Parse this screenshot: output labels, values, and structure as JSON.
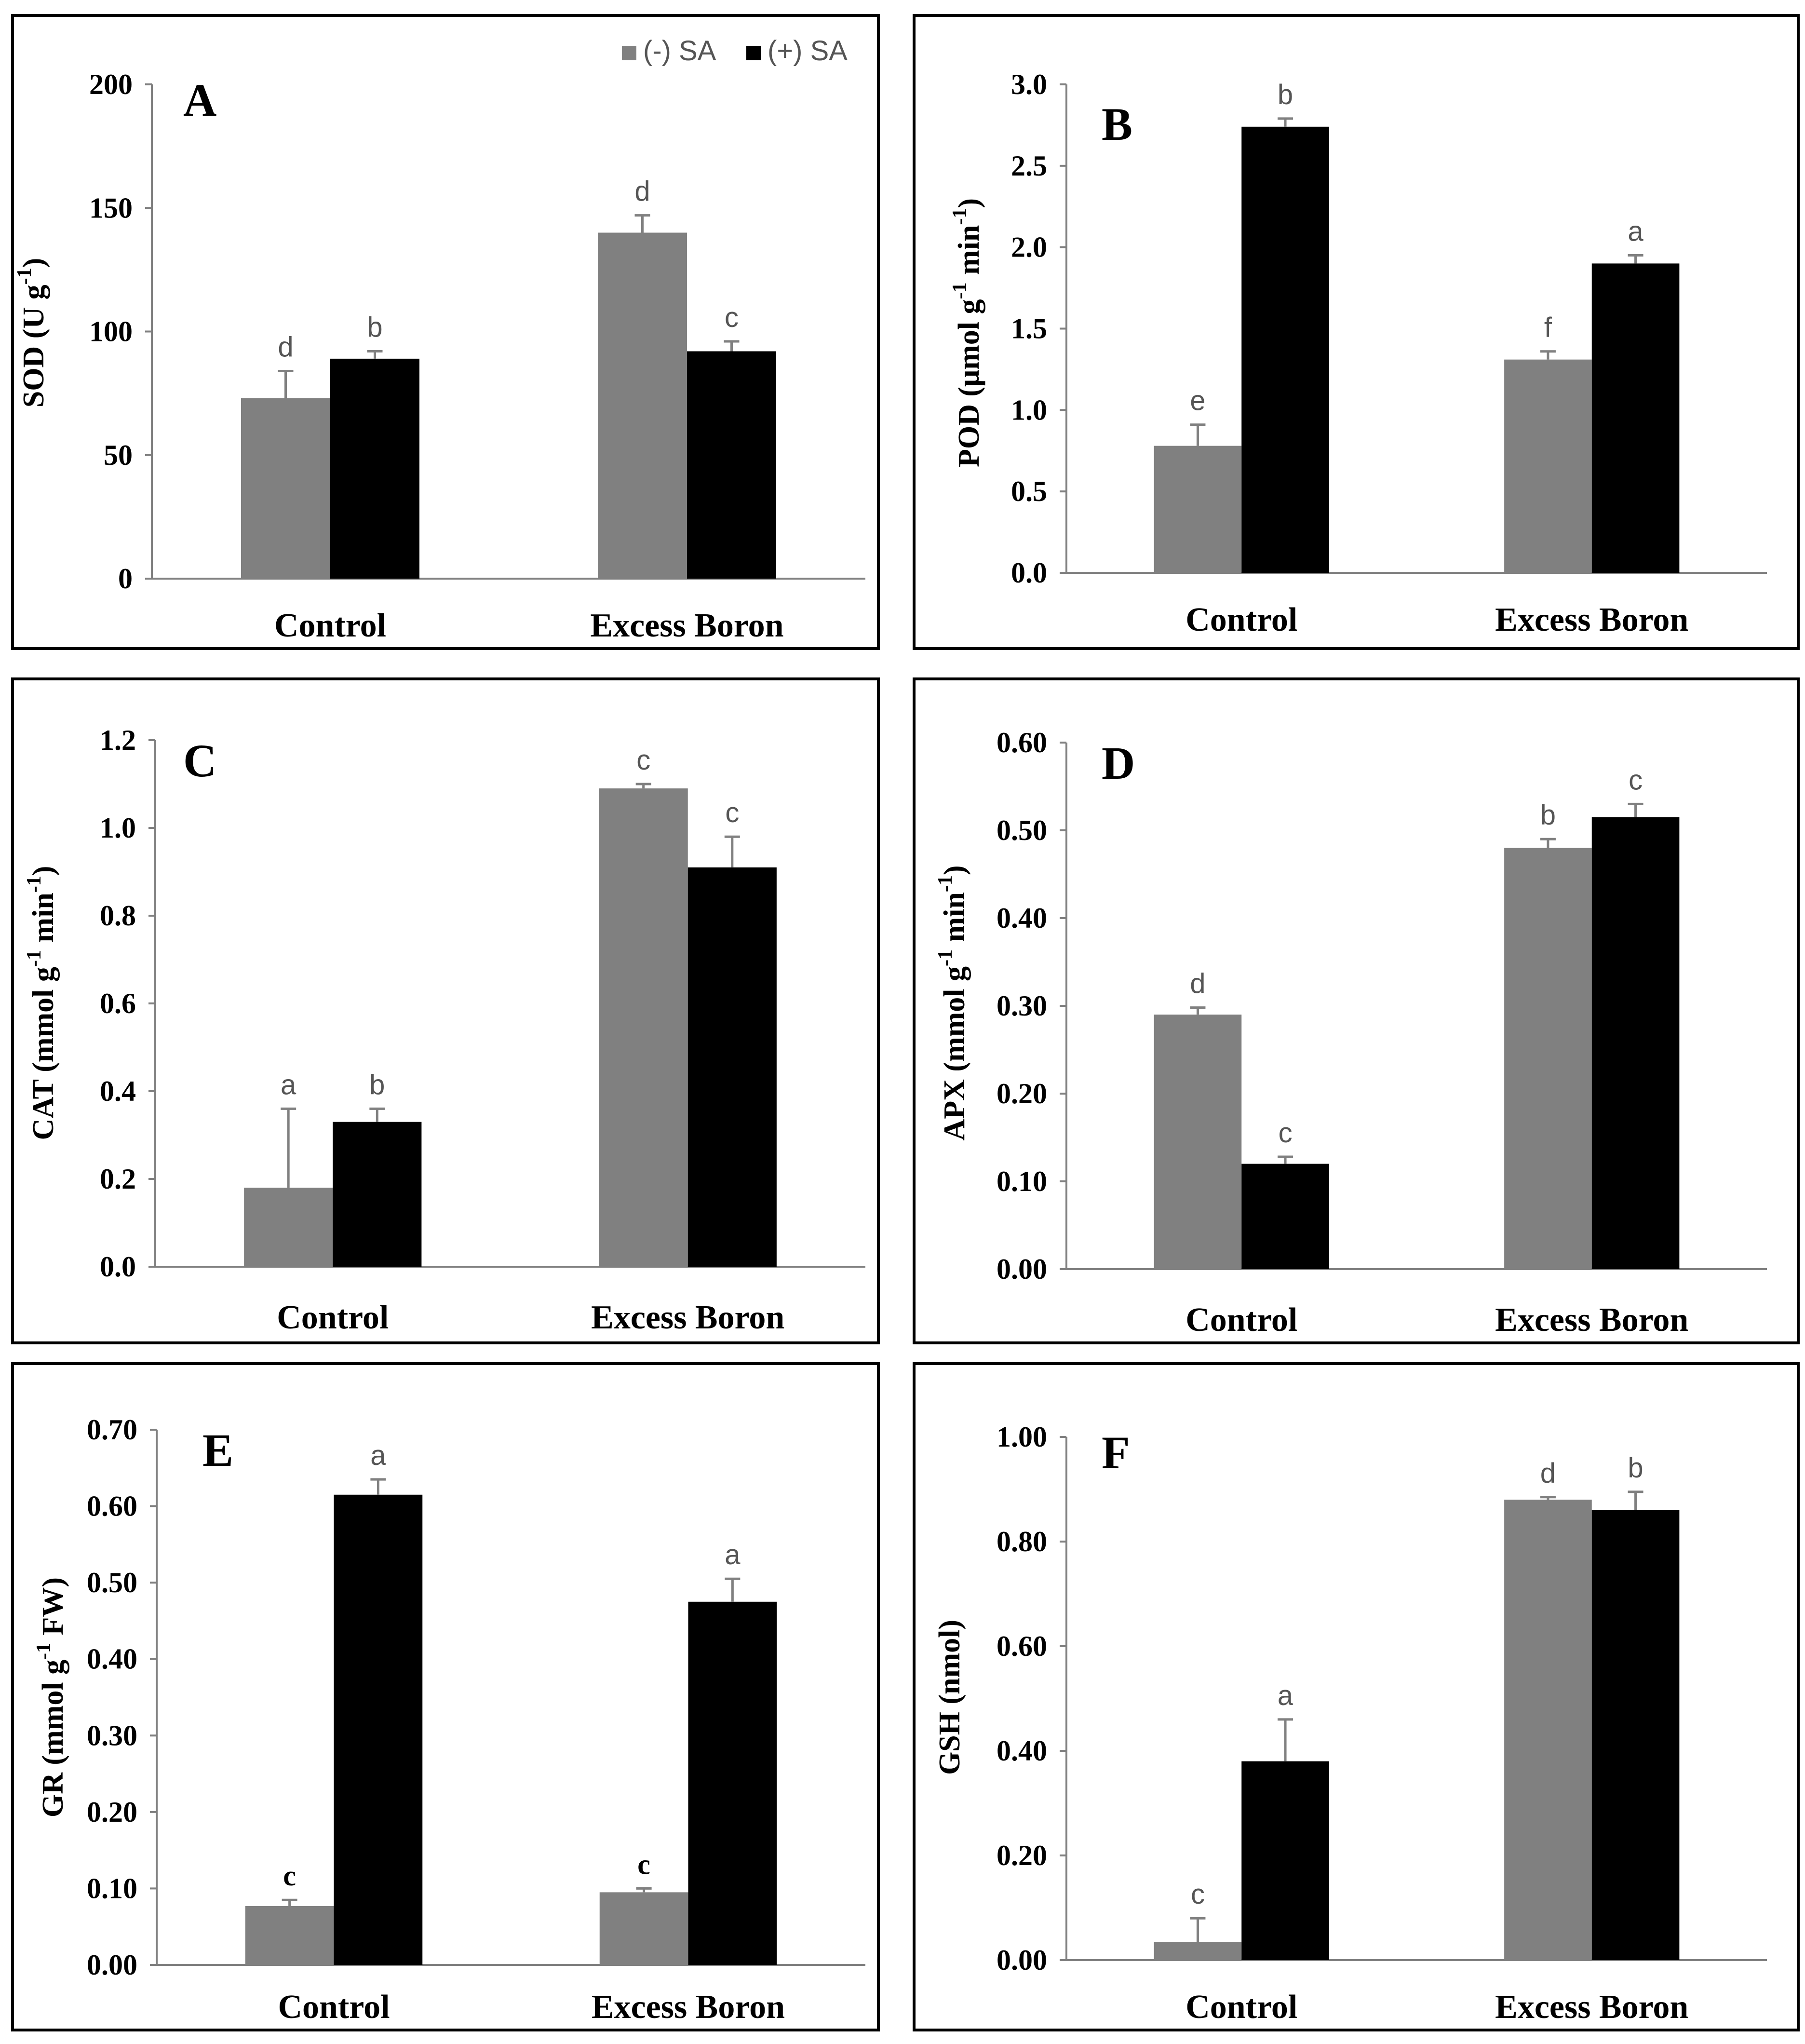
{
  "colors": {
    "minus_sa": "#808080",
    "plus_sa": "#000000",
    "axis": "#808080",
    "error": "#808080"
  },
  "legend": {
    "entries": [
      "(-) SA",
      "(+) SA"
    ],
    "placement": "top-right of panel A"
  },
  "chart_data": [
    {
      "panel": "A",
      "type": "bar",
      "ylabel": {
        "base": "SOD (U g",
        "sup": "-1",
        "end": ")"
      },
      "ylim": [
        0,
        200
      ],
      "ticks": [
        "0",
        "50",
        "100",
        "150",
        "200"
      ],
      "categories": [
        "Control",
        "Excess Boron"
      ],
      "series": [
        {
          "name": "(-) SA",
          "values": [
            73,
            140
          ],
          "errors": [
            11,
            7
          ],
          "letters": [
            "d",
            "d"
          ]
        },
        {
          "name": "(+) SA",
          "values": [
            89,
            92
          ],
          "errors": [
            3,
            4
          ],
          "letters": [
            "b",
            "c"
          ]
        }
      ]
    },
    {
      "panel": "B",
      "type": "bar",
      "ylabel": {
        "base": "POD (μmol g",
        "sup": "-1",
        "mid": " min",
        "sup2": "-1",
        "end": ")"
      },
      "ylim": [
        0,
        3.0
      ],
      "ticks": [
        "0.0",
        "0.5",
        "1.0",
        "1.5",
        "2.0",
        "2.5",
        "3.0"
      ],
      "categories": [
        "Control",
        "Excess Boron"
      ],
      "series": [
        {
          "name": "(-) SA",
          "values": [
            0.78,
            1.31
          ],
          "errors": [
            0.13,
            0.05
          ],
          "letters": [
            "e",
            "f"
          ]
        },
        {
          "name": "(+) SA",
          "values": [
            2.74,
            1.9
          ],
          "errors": [
            0.05,
            0.05
          ],
          "letters": [
            "b",
            "a"
          ]
        }
      ]
    },
    {
      "panel": "C",
      "type": "bar",
      "ylabel": {
        "base": "CAT (mmol g",
        "sup": "-1",
        "mid": " min",
        "sup2": "-1",
        "end": ")"
      },
      "ylim": [
        0,
        1.2
      ],
      "ticks": [
        "0.0",
        "0.2",
        "0.4",
        "0.6",
        "0.8",
        "1.0",
        "1.2"
      ],
      "categories": [
        "Control",
        "Excess Boron"
      ],
      "series": [
        {
          "name": "(-) SA",
          "values": [
            0.18,
            1.09
          ],
          "errors": [
            0.18,
            0.01
          ],
          "letters": [
            "a",
            "c"
          ]
        },
        {
          "name": "(+) SA",
          "values": [
            0.33,
            0.91
          ],
          "errors": [
            0.03,
            0.07
          ],
          "letters": [
            "b",
            "c"
          ]
        }
      ]
    },
    {
      "panel": "D",
      "type": "bar",
      "ylabel": {
        "base": "APX (mmol g",
        "sup": "-1",
        "mid": " min",
        "sup2": "-1",
        "end": ")"
      },
      "ylim": [
        0,
        0.6
      ],
      "ticks": [
        "0.00",
        "0.10",
        "0.20",
        "0.30",
        "0.40",
        "0.50",
        "0.60"
      ],
      "categories": [
        "Control",
        "Excess Boron"
      ],
      "series": [
        {
          "name": "(-) SA",
          "values": [
            0.29,
            0.48
          ],
          "errors": [
            0.008,
            0.01
          ],
          "letters": [
            "d",
            "b"
          ]
        },
        {
          "name": "(+) SA",
          "values": [
            0.12,
            0.515
          ],
          "errors": [
            0.008,
            0.015
          ],
          "letters": [
            "c",
            "c"
          ]
        }
      ]
    },
    {
      "panel": "E",
      "type": "bar",
      "ylabel": {
        "base": "GR (mmol g",
        "sup": "-1",
        "end": "  FW)"
      },
      "ylim": [
        0,
        0.7
      ],
      "ticks": [
        "0.00",
        "0.10",
        "0.20",
        "0.30",
        "0.40",
        "0.50",
        "0.60",
        "0.70"
      ],
      "categories": [
        "Control",
        "Excess Boron"
      ],
      "letters_bold_for_first_series": true,
      "series": [
        {
          "name": "(-) SA",
          "values": [
            0.077,
            0.095
          ],
          "errors": [
            0.008,
            0.005
          ],
          "letters": [
            "c",
            "c"
          ]
        },
        {
          "name": "(+) SA",
          "values": [
            0.615,
            0.475
          ],
          "errors": [
            0.02,
            0.03
          ],
          "letters": [
            "a",
            "a"
          ]
        }
      ]
    },
    {
      "panel": "F",
      "type": "bar",
      "ylabel": {
        "base": "GSH (nmol)"
      },
      "ylim": [
        0,
        1.0
      ],
      "ticks": [
        "0.00",
        "0.20",
        "0.40",
        "0.60",
        "0.80",
        "1.00"
      ],
      "categories": [
        "Control",
        "Excess Boron"
      ],
      "series": [
        {
          "name": "(-) SA",
          "values": [
            0.035,
            0.88
          ],
          "errors": [
            0.045,
            0.005
          ],
          "letters": [
            "c",
            "d"
          ]
        },
        {
          "name": "(+) SA",
          "values": [
            0.38,
            0.86
          ],
          "errors": [
            0.08,
            0.035
          ],
          "letters": [
            "a",
            "b"
          ]
        }
      ]
    }
  ]
}
